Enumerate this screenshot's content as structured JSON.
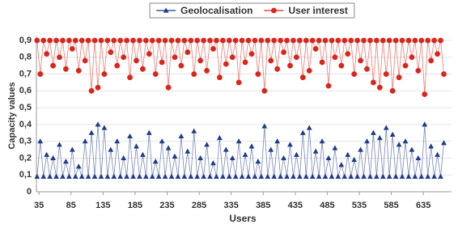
{
  "chart_data": {
    "type": "line",
    "x_label": "Users",
    "y_label": "Capacity values",
    "xlim": [
      31,
      679
    ],
    "xticks": [
      35,
      85,
      135,
      185,
      235,
      285,
      335,
      385,
      435,
      485,
      535,
      585,
      635
    ],
    "ylim": [
      0,
      0.9
    ],
    "yticks": [
      0,
      {
        "value": 0.1,
        "label": "0,1"
      },
      {
        "value": 0.2,
        "label": "0,2"
      },
      {
        "value": 0.3,
        "label": "0,3"
      },
      {
        "value": 0.4,
        "label": "0,4"
      },
      {
        "value": 0.5,
        "label": "0,5"
      },
      {
        "value": 0.6,
        "label": "0,6"
      },
      {
        "value": 0.7,
        "label": "0,7"
      },
      {
        "value": 0.8,
        "label": "0,8"
      },
      {
        "value": 0.9,
        "label": "0,9"
      }
    ],
    "grid": true,
    "legend": "top",
    "x": [
      32,
      37,
      42,
      47,
      52,
      57,
      62,
      67,
      72,
      77,
      82,
      87,
      92,
      97,
      102,
      107,
      112,
      117,
      122,
      127,
      132,
      137,
      142,
      147,
      152,
      157,
      162,
      167,
      172,
      177,
      182,
      187,
      192,
      197,
      202,
      207,
      212,
      217,
      222,
      227,
      232,
      237,
      242,
      247,
      252,
      257,
      262,
      267,
      272,
      277,
      282,
      287,
      292,
      297,
      302,
      307,
      312,
      317,
      322,
      327,
      332,
      337,
      342,
      347,
      352,
      357,
      362,
      367,
      372,
      377,
      382,
      387,
      392,
      397,
      402,
      407,
      412,
      417,
      422,
      427,
      432,
      437,
      442,
      447,
      452,
      457,
      462,
      467,
      472,
      477,
      482,
      487,
      492,
      497,
      502,
      507,
      512,
      517,
      522,
      527,
      532,
      537,
      542,
      547,
      552,
      557,
      562,
      567,
      572,
      577,
      582,
      587,
      592,
      597,
      602,
      607,
      612,
      617,
      622,
      627,
      632,
      637,
      642,
      647,
      652,
      657,
      662,
      667
    ],
    "series": [
      {
        "name": "Geolocalisation",
        "color": "#1f3c88",
        "marker": "triangle",
        "values": [
          0.09,
          0.3,
          0.09,
          0.22,
          0.09,
          0.2,
          0.09,
          0.28,
          0.09,
          0.18,
          0.09,
          0.25,
          0.09,
          0.15,
          0.09,
          0.3,
          0.09,
          0.35,
          0.09,
          0.4,
          0.09,
          0.38,
          0.09,
          0.25,
          0.09,
          0.3,
          0.09,
          0.2,
          0.09,
          0.33,
          0.09,
          0.27,
          0.09,
          0.22,
          0.09,
          0.35,
          0.09,
          0.18,
          0.09,
          0.3,
          0.09,
          0.26,
          0.09,
          0.21,
          0.09,
          0.33,
          0.09,
          0.24,
          0.09,
          0.36,
          0.09,
          0.2,
          0.09,
          0.28,
          0.09,
          0.17,
          0.09,
          0.32,
          0.09,
          0.25,
          0.09,
          0.2,
          0.09,
          0.3,
          0.09,
          0.22,
          0.09,
          0.27,
          0.09,
          0.18,
          0.09,
          0.39,
          0.09,
          0.25,
          0.09,
          0.3,
          0.09,
          0.2,
          0.09,
          0.28,
          0.09,
          0.22,
          0.09,
          0.35,
          0.09,
          0.38,
          0.09,
          0.24,
          0.09,
          0.3,
          0.09,
          0.2,
          0.09,
          0.26,
          0.09,
          0.16,
          0.09,
          0.22,
          0.09,
          0.19,
          0.09,
          0.25,
          0.09,
          0.3,
          0.09,
          0.35,
          0.09,
          0.32,
          0.09,
          0.38,
          0.09,
          0.34,
          0.09,
          0.28,
          0.09,
          0.3,
          0.09,
          0.25,
          0.09,
          0.2,
          0.09,
          0.4,
          0.09,
          0.27,
          0.09,
          0.22,
          0.09,
          0.29
        ]
      },
      {
        "name": "User interest",
        "color": "#d9261c",
        "marker": "circle",
        "values": [
          0.9,
          0.7,
          0.9,
          0.82,
          0.9,
          0.75,
          0.9,
          0.8,
          0.9,
          0.73,
          0.9,
          0.85,
          0.9,
          0.72,
          0.9,
          0.78,
          0.9,
          0.6,
          0.9,
          0.62,
          0.9,
          0.7,
          0.9,
          0.83,
          0.9,
          0.75,
          0.9,
          0.8,
          0.9,
          0.68,
          0.9,
          0.78,
          0.9,
          0.73,
          0.9,
          0.82,
          0.9,
          0.7,
          0.9,
          0.77,
          0.9,
          0.62,
          0.9,
          0.8,
          0.9,
          0.75,
          0.9,
          0.83,
          0.9,
          0.7,
          0.9,
          0.78,
          0.9,
          0.72,
          0.9,
          0.85,
          0.9,
          0.68,
          0.9,
          0.76,
          0.9,
          0.8,
          0.9,
          0.65,
          0.9,
          0.77,
          0.9,
          0.82,
          0.9,
          0.7,
          0.9,
          0.6,
          0.9,
          0.78,
          0.9,
          0.73,
          0.9,
          0.83,
          0.9,
          0.75,
          0.9,
          0.8,
          0.9,
          0.68,
          0.9,
          0.72,
          0.9,
          0.85,
          0.9,
          0.77,
          0.9,
          0.63,
          0.9,
          0.8,
          0.9,
          0.75,
          0.9,
          0.82,
          0.9,
          0.7,
          0.9,
          0.78,
          0.9,
          0.73,
          0.9,
          0.65,
          0.9,
          0.62,
          0.9,
          0.7,
          0.9,
          0.6,
          0.9,
          0.68,
          0.9,
          0.75,
          0.9,
          0.8,
          0.9,
          0.72,
          0.9,
          0.58,
          0.9,
          0.78,
          0.9,
          0.82,
          0.9,
          0.7
        ]
      }
    ]
  }
}
